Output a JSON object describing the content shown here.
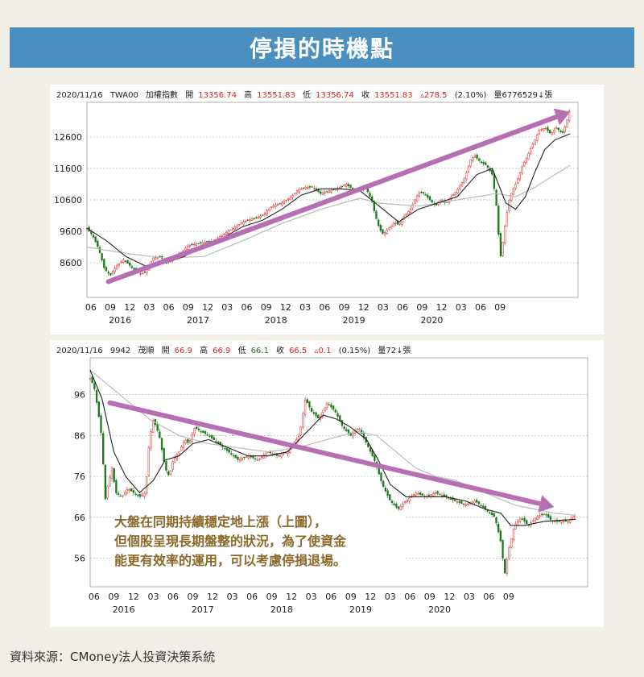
{
  "title": "停損的時機點",
  "source": "資料來源：CMoney法人投資決策系統",
  "annotation": [
    "大盤在同期持續穩定地上漲（上圖），",
    "但個股呈現長期盤整的狀況，為了使資金",
    "能更有效率的運用，可以考慮停損退場。"
  ],
  "colors": {
    "title_bg": "#4a8fc0",
    "arrow": "#b76fb3",
    "up": "#d22",
    "down": "#1a7a1a",
    "ma_short": "#222222",
    "ma_long": "#bbbbbb"
  },
  "chart_data": [
    {
      "type": "candlestick",
      "header": {
        "date": "2020/11/16",
        "code": "TWA00",
        "name": "加權指數",
        "open_label": "開",
        "open": "13356.74",
        "high_label": "高",
        "high": "13551.83",
        "low_label": "低",
        "low": "13356.74",
        "close_label": "收",
        "close": "13551.83",
        "change": "▵278.5",
        "pct": "(2.10%)",
        "volume": "量6776529↓張"
      },
      "yticks": [
        8600,
        9600,
        10600,
        11600,
        12600
      ],
      "ylim": [
        7500,
        13700
      ],
      "xtick_labels": [
        "06",
        "09",
        "12",
        "03",
        "06",
        "09",
        "12",
        "03",
        "06",
        "09",
        "12",
        "03",
        "06",
        "09",
        "12",
        "03",
        "06",
        "09",
        "12",
        "03",
        "06",
        "09"
      ],
      "year_labels": [
        "2016",
        "2017",
        "2018",
        "2019",
        "2020"
      ],
      "close_path": [
        [
          0,
          9700
        ],
        [
          0.3,
          9450
        ],
        [
          0.6,
          9050
        ],
        [
          0.9,
          8400
        ],
        [
          1.2,
          8200
        ],
        [
          1.5,
          8500
        ],
        [
          1.9,
          8700
        ],
        [
          2.3,
          8450
        ],
        [
          2.7,
          8250
        ],
        [
          3.0,
          8300
        ],
        [
          3.4,
          8750
        ],
        [
          3.8,
          8800
        ],
        [
          4.0,
          8550
        ],
        [
          4.3,
          8700
        ],
        [
          4.8,
          8900
        ],
        [
          5.2,
          9150
        ],
        [
          5.6,
          9200
        ],
        [
          6.0,
          9250
        ],
        [
          6.5,
          9300
        ],
        [
          7.0,
          9500
        ],
        [
          7.5,
          9700
        ],
        [
          8.0,
          9900
        ],
        [
          8.5,
          10000
        ],
        [
          9.0,
          10100
        ],
        [
          9.5,
          10400
        ],
        [
          10.0,
          10500
        ],
        [
          10.5,
          10700
        ],
        [
          10.8,
          10900
        ],
        [
          11.2,
          11000
        ],
        [
          11.6,
          11000
        ],
        [
          12.0,
          10800
        ],
        [
          12.5,
          10900
        ],
        [
          13.0,
          11000
        ],
        [
          13.3,
          11100
        ],
        [
          13.7,
          10900
        ],
        [
          14.0,
          10950
        ],
        [
          14.3,
          11000
        ],
        [
          14.6,
          10600
        ],
        [
          14.8,
          10100
        ],
        [
          15.0,
          9700
        ],
        [
          15.2,
          9500
        ],
        [
          15.5,
          9700
        ],
        [
          15.8,
          9900
        ],
        [
          16.0,
          9800
        ],
        [
          16.3,
          10100
        ],
        [
          16.6,
          10300
        ],
        [
          16.9,
          10700
        ],
        [
          17.1,
          10850
        ],
        [
          17.3,
          10800
        ],
        [
          17.6,
          10600
        ],
        [
          17.9,
          10400
        ],
        [
          18.1,
          10600
        ],
        [
          18.4,
          10500
        ],
        [
          18.7,
          10700
        ],
        [
          19.0,
          10900
        ],
        [
          19.3,
          11200
        ],
        [
          19.5,
          11500
        ],
        [
          19.7,
          11900
        ],
        [
          19.9,
          12000
        ],
        [
          20.2,
          11800
        ],
        [
          20.5,
          11700
        ],
        [
          20.8,
          11400
        ],
        [
          21.0,
          10500
        ],
        [
          21.1,
          9700
        ],
        [
          21.2,
          8700
        ],
        [
          21.35,
          9300
        ],
        [
          21.5,
          10000
        ],
        [
          21.7,
          10700
        ],
        [
          22.0,
          11100
        ],
        [
          22.3,
          11600
        ],
        [
          22.6,
          12000
        ],
        [
          22.9,
          12400
        ],
        [
          23.2,
          12800
        ],
        [
          23.5,
          12900
        ],
        [
          23.8,
          12700
        ],
        [
          24.1,
          12900
        ],
        [
          24.4,
          12700
        ],
        [
          24.6,
          13050
        ],
        [
          24.8,
          13550
        ]
      ],
      "ma_short": [
        [
          0,
          9700
        ],
        [
          1,
          9300
        ],
        [
          2,
          8800
        ],
        [
          3,
          8500
        ],
        [
          4,
          8600
        ],
        [
          5,
          8800
        ],
        [
          6,
          9150
        ],
        [
          7,
          9400
        ],
        [
          8,
          9750
        ],
        [
          9,
          9950
        ],
        [
          10,
          10300
        ],
        [
          11,
          10750
        ],
        [
          12,
          10950
        ],
        [
          13,
          10950
        ],
        [
          14,
          10900
        ],
        [
          15,
          10400
        ],
        [
          16,
          9900
        ],
        [
          17,
          10300
        ],
        [
          18,
          10500
        ],
        [
          19,
          10700
        ],
        [
          20,
          11400
        ],
        [
          20.8,
          11600
        ],
        [
          21.5,
          10500
        ],
        [
          22,
          10300
        ],
        [
          22.5,
          10700
        ],
        [
          23,
          11500
        ],
        [
          23.5,
          12200
        ],
        [
          24,
          12500
        ],
        [
          24.8,
          12700
        ]
      ],
      "ma_long": [
        [
          0,
          9100
        ],
        [
          2,
          8900
        ],
        [
          4,
          8750
        ],
        [
          6,
          8800
        ],
        [
          8,
          9300
        ],
        [
          10,
          9850
        ],
        [
          12,
          10300
        ],
        [
          14,
          10650
        ],
        [
          15,
          10500
        ],
        [
          17,
          10400
        ],
        [
          19,
          10600
        ],
        [
          21,
          10800
        ],
        [
          22,
          10700
        ],
        [
          23,
          11000
        ],
        [
          24,
          11400
        ],
        [
          24.8,
          11700
        ]
      ],
      "arrow": {
        "from": [
          1.1,
          8000
        ],
        "to": [
          24.8,
          13400
        ]
      }
    },
    {
      "type": "candlestick",
      "header": {
        "date": "2020/11/16",
        "code": "9942",
        "name": "茂順",
        "open_label": "開",
        "open": "66.9",
        "high_label": "高",
        "high": "66.9",
        "low_label": "低",
        "low": "66.1",
        "close_label": "收",
        "close": "66.5",
        "change": "▵0.1",
        "pct": "(0.15%)",
        "volume": "量72↓張"
      },
      "yticks": [
        56,
        66,
        76,
        86,
        96
      ],
      "ylim": [
        49,
        105
      ],
      "xtick_labels": [
        "06",
        "09",
        "12",
        "03",
        "06",
        "09",
        "12",
        "03",
        "06",
        "09",
        "12",
        "03",
        "06",
        "09",
        "12",
        "03",
        "06",
        "09",
        "12",
        "03",
        "06",
        "09"
      ],
      "year_labels": [
        "2016",
        "2017",
        "2018",
        "2019",
        "2020"
      ],
      "close_path": [
        [
          0,
          100
        ],
        [
          0.2,
          98
        ],
        [
          0.4,
          92
        ],
        [
          0.6,
          85
        ],
        [
          0.75,
          70
        ],
        [
          0.9,
          74
        ],
        [
          1.1,
          78
        ],
        [
          1.3,
          72
        ],
        [
          1.6,
          71
        ],
        [
          1.9,
          73
        ],
        [
          2.2,
          72
        ],
        [
          2.5,
          71
        ],
        [
          2.8,
          72
        ],
        [
          3.0,
          85
        ],
        [
          3.2,
          90
        ],
        [
          3.5,
          86
        ],
        [
          3.8,
          78
        ],
        [
          4.0,
          76
        ],
        [
          4.2,
          80
        ],
        [
          4.5,
          82
        ],
        [
          4.8,
          85
        ],
        [
          5.0,
          84
        ],
        [
          5.3,
          88
        ],
        [
          5.6,
          87
        ],
        [
          6.0,
          86
        ],
        [
          6.5,
          84
        ],
        [
          7.0,
          82
        ],
        [
          7.5,
          80
        ],
        [
          8.0,
          81
        ],
        [
          8.5,
          80
        ],
        [
          9.0,
          82
        ],
        [
          9.5,
          81
        ],
        [
          10.0,
          82
        ],
        [
          10.3,
          84
        ],
        [
          10.6,
          86
        ],
        [
          10.9,
          95
        ],
        [
          11.2,
          92
        ],
        [
          11.6,
          90
        ],
        [
          12.0,
          94
        ],
        [
          12.4,
          92
        ],
        [
          12.8,
          88
        ],
        [
          13.2,
          86
        ],
        [
          13.6,
          88
        ],
        [
          14.0,
          84
        ],
        [
          14.4,
          80
        ],
        [
          14.8,
          74
        ],
        [
          15.2,
          70
        ],
        [
          15.6,
          68
        ],
        [
          16.0,
          70
        ],
        [
          16.5,
          72
        ],
        [
          17.0,
          71
        ],
        [
          17.5,
          72
        ],
        [
          18.0,
          71
        ],
        [
          18.5,
          70
        ],
        [
          19.0,
          69
        ],
        [
          19.5,
          70
        ],
        [
          20.0,
          68
        ],
        [
          20.5,
          66
        ],
        [
          20.8,
          60
        ],
        [
          21.0,
          52
        ],
        [
          21.2,
          58
        ],
        [
          21.5,
          64
        ],
        [
          21.8,
          66
        ],
        [
          22.2,
          64
        ],
        [
          22.6,
          66
        ],
        [
          23.0,
          67
        ],
        [
          23.4,
          65
        ],
        [
          23.8,
          65
        ],
        [
          24.2,
          65
        ],
        [
          24.6,
          66.5
        ]
      ],
      "ma_short": [
        [
          0,
          102
        ],
        [
          0.6,
          95
        ],
        [
          1.2,
          82
        ],
        [
          1.8,
          76
        ],
        [
          2.5,
          72
        ],
        [
          3.2,
          75
        ],
        [
          3.8,
          80
        ],
        [
          4.5,
          81
        ],
        [
          5.2,
          84
        ],
        [
          6.0,
          85
        ],
        [
          7.0,
          83
        ],
        [
          8.0,
          81
        ],
        [
          9.0,
          81
        ],
        [
          10.0,
          82
        ],
        [
          10.6,
          85
        ],
        [
          11.2,
          88
        ],
        [
          11.8,
          91
        ],
        [
          12.5,
          90
        ],
        [
          13.2,
          88
        ],
        [
          14.0,
          85
        ],
        [
          14.6,
          80
        ],
        [
          15.2,
          74
        ],
        [
          16.0,
          71
        ],
        [
          17.0,
          71
        ],
        [
          18.0,
          71
        ],
        [
          19.0,
          70
        ],
        [
          20.0,
          68
        ],
        [
          20.8,
          67
        ],
        [
          21.3,
          64
        ],
        [
          22.0,
          64
        ],
        [
          23.0,
          65
        ],
        [
          24.6,
          65.5
        ]
      ],
      "ma_long": [
        [
          0,
          102
        ],
        [
          1.5,
          96
        ],
        [
          3.0,
          90
        ],
        [
          4.5,
          86
        ],
        [
          6.0,
          84
        ],
        [
          7.5,
          83
        ],
        [
          9.0,
          82
        ],
        [
          10.5,
          83
        ],
        [
          12.0,
          85
        ],
        [
          13.5,
          87
        ],
        [
          14.5,
          86
        ],
        [
          15.5,
          82
        ],
        [
          16.5,
          78
        ],
        [
          17.5,
          76
        ],
        [
          18.5,
          75
        ],
        [
          19.5,
          73
        ],
        [
          20.5,
          71
        ],
        [
          21.5,
          69
        ],
        [
          22.5,
          68
        ],
        [
          23.5,
          67
        ],
        [
          24.6,
          66.5
        ]
      ],
      "arrow": {
        "from": [
          1.0,
          94
        ],
        "to": [
          23.5,
          68.5
        ]
      }
    }
  ]
}
